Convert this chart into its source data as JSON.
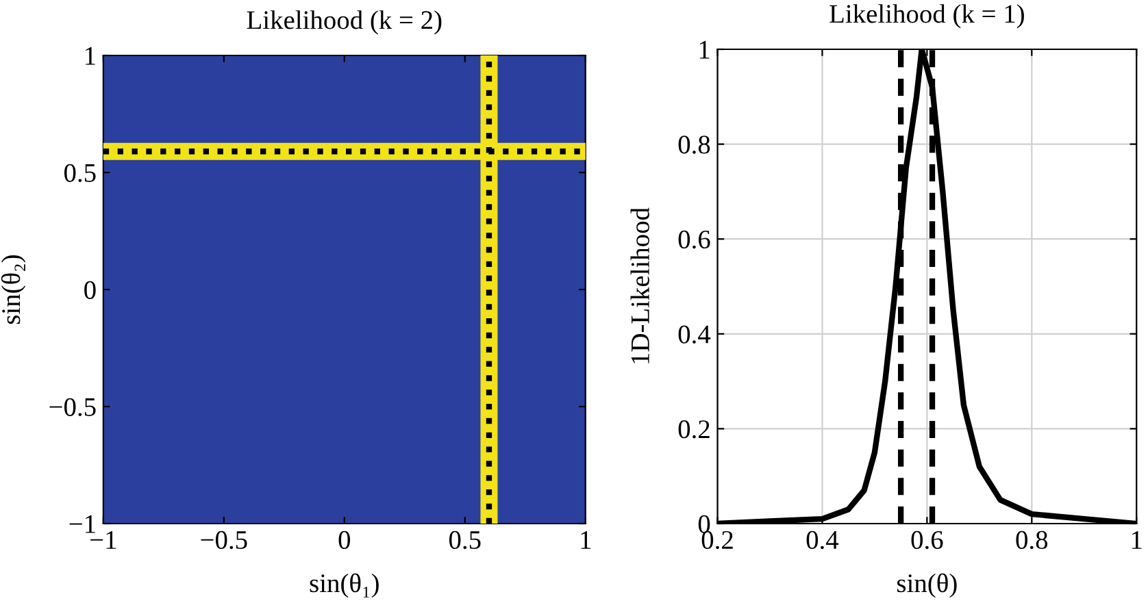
{
  "chart_data": [
    {
      "type": "line",
      "title": "Likelihood (k = 2)",
      "xlabel": "sin(θ₁)",
      "ylabel": "sin(θ₂)",
      "series": [
        {
          "color": "#f2e21a",
          "x": [
            -1,
            1
          ],
          "values": [
            0.59,
            0.59
          ]
        },
        {
          "color": "#f2e21a",
          "x": [
            0.6,
            0.6
          ],
          "values": [
            -1,
            1
          ]
        }
      ],
      "xlim": [
        -1,
        1
      ],
      "ylim": [
        -1,
        1
      ],
      "xticks": [
        {
          "value": -1,
          "label": "−1"
        },
        {
          "value": -0.5,
          "label": "−0.5"
        },
        0,
        0.5,
        1
      ],
      "yticks": [
        {
          "value": -1,
          "label": "−1"
        },
        {
          "value": -0.5,
          "label": "−0.5"
        },
        0,
        0.5,
        1
      ],
      "ref_lines": [
        {
          "axis": "x",
          "value": 0.6,
          "color": "#000000",
          "line_style": "dotted"
        },
        {
          "axis": "y",
          "value": 0.59,
          "color": "#000000",
          "line_style": "dotted"
        }
      ]
    },
    {
      "type": "line",
      "title": "Likelihood (k = 1)",
      "xlabel": "sin(θ)",
      "ylabel": "1D-Likelihood",
      "x": [
        0.2,
        0.3,
        0.4,
        0.45,
        0.48,
        0.5,
        0.52,
        0.54,
        0.56,
        0.58,
        0.59,
        0.61,
        0.63,
        0.65,
        0.67,
        0.7,
        0.74,
        0.8,
        0.9,
        1.0
      ],
      "series": [
        {
          "color": "#000000",
          "values": [
            0,
            0.005,
            0.01,
            0.03,
            0.07,
            0.15,
            0.3,
            0.5,
            0.75,
            0.9,
            1.0,
            0.92,
            0.7,
            0.45,
            0.25,
            0.12,
            0.05,
            0.02,
            0.01,
            0
          ]
        }
      ],
      "xlim": [
        0.2,
        1
      ],
      "ylim": [
        0,
        1
      ],
      "xticks": [
        0.2,
        0.4,
        0.6,
        0.8,
        1
      ],
      "yticks": [
        0,
        0.2,
        0.4,
        0.6,
        0.8,
        1
      ],
      "grid": true,
      "line_style": "solid",
      "marker": "none",
      "ref_lines": [
        {
          "axis": "x",
          "value": 0.55,
          "color": "#000000",
          "line_style": "dashed"
        },
        {
          "axis": "x",
          "value": 0.61,
          "color": "#000000",
          "line_style": "dashed"
        }
      ]
    }
  ]
}
